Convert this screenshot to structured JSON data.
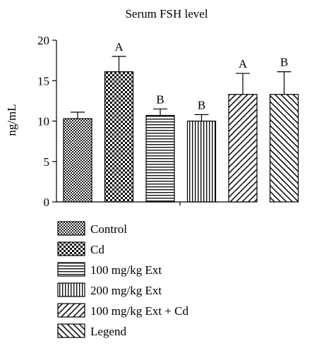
{
  "chart_data": {
    "type": "bar",
    "title": "Serum FSH level",
    "xlabel": "",
    "ylabel": "ng/mL",
    "ylim": [
      0,
      20
    ],
    "yticks": [
      "0",
      "5",
      "10",
      "15",
      "20"
    ],
    "categories": [
      "Control",
      "Cd",
      "100 mg/kg Ext",
      "200 mg/kg Ext",
      "100 mg/kg Ext + Cd",
      "Legend"
    ],
    "values": [
      10.3,
      16.1,
      10.7,
      10.0,
      13.3,
      13.3
    ],
    "errors": [
      0.8,
      1.9,
      0.8,
      0.8,
      2.6,
      2.8
    ],
    "annotations": [
      "",
      "A",
      "B",
      "B",
      "A",
      "B"
    ],
    "patterns": [
      "fine-checker",
      "coarse-checker",
      "horizontal-lines",
      "vertical-lines",
      "diagonal-up",
      "diagonal-down"
    ],
    "grid": false,
    "legend_position": "bottom-left"
  }
}
